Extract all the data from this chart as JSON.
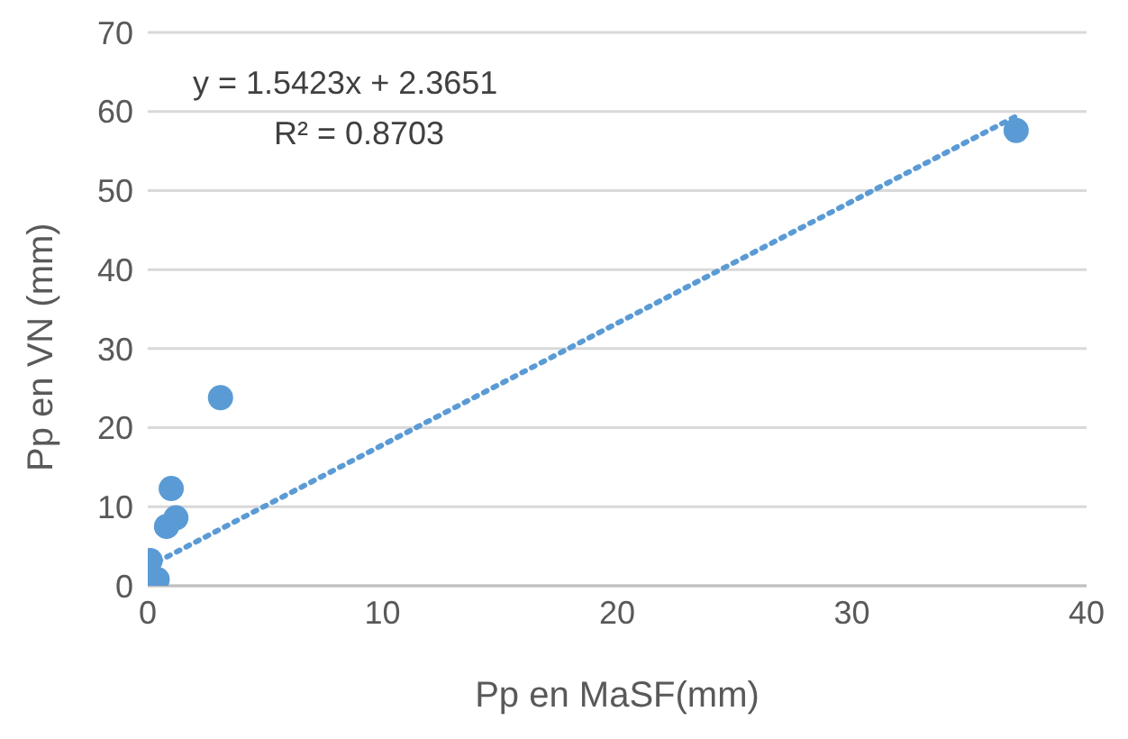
{
  "chart_data": {
    "type": "scatter",
    "xlabel": "Pp en MaSF(mm)",
    "ylabel": "Pp en VN (mm)",
    "xlim": [
      0,
      40
    ],
    "xticks": [
      0,
      10,
      20,
      30,
      40
    ],
    "ylim": [
      0,
      70
    ],
    "yticks": [
      0,
      10,
      20,
      30,
      40,
      50,
      60,
      70
    ],
    "grid": "y",
    "legend": false,
    "marker": "circle",
    "annotations": [
      "y = 1.5423x + 2.3651",
      "R² = 0.8703"
    ],
    "series": [
      {
        "type": "scatter",
        "color": "#5b9bd5",
        "x": [
          37,
          3.1,
          1.0,
          1.2,
          0.8,
          0.1,
          0.4
        ],
        "values": [
          57.6,
          23.8,
          12.3,
          8.6,
          7.5,
          3.2,
          0.8
        ]
      },
      {
        "type": "line",
        "color": "#5b9bd5",
        "line_style": "dotted",
        "marker": "none",
        "x": [
          0,
          37
        ],
        "values": [
          2.4,
          59.4
        ]
      }
    ]
  }
}
